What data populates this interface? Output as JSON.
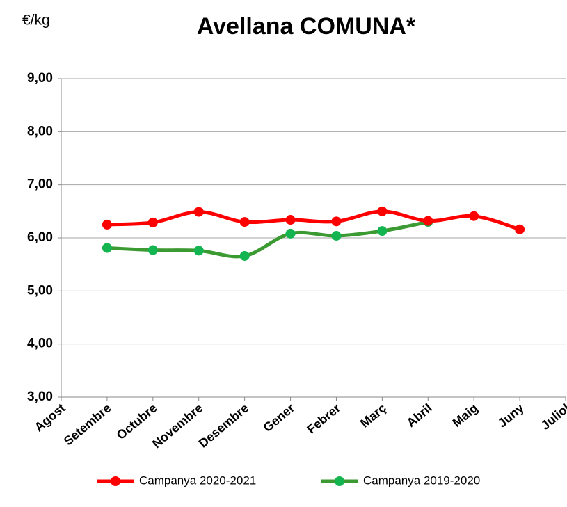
{
  "chart_data": {
    "type": "line",
    "title": "Avellana COMUNA*",
    "ylabel": "€/kg",
    "categories": [
      "Agost",
      "Setembre",
      "Octubre",
      "Novembre",
      "Desembre",
      "Gener",
      "Febrer",
      "Març",
      "Abril",
      "Maig",
      "Juny",
      "Juliol"
    ],
    "series": [
      {
        "name": "Campanya 2020-2021",
        "color": "#ff0000",
        "marker_color": "#ff0000",
        "values": [
          null,
          6.25,
          6.29,
          6.49,
          6.3,
          6.34,
          6.31,
          6.5,
          6.32,
          6.41,
          6.16,
          null
        ]
      },
      {
        "name": "Campanya 2019-2020",
        "color": "#3c9a32",
        "marker_color": "#14b450",
        "values": [
          null,
          5.81,
          5.77,
          5.76,
          5.66,
          6.08,
          6.04,
          6.13,
          6.3,
          null,
          null,
          null
        ]
      }
    ],
    "ylim": [
      3,
      9
    ],
    "yticks": [
      {
        "value": 3,
        "label": "3,00"
      },
      {
        "value": 4,
        "label": "4,00"
      },
      {
        "value": 5,
        "label": "5,00"
      },
      {
        "value": 6,
        "label": "6,00"
      },
      {
        "value": 7,
        "label": "7,00"
      },
      {
        "value": 8,
        "label": "8,00"
      },
      {
        "value": 9,
        "label": "9,00"
      }
    ],
    "grid": true,
    "legend": "bottom"
  }
}
